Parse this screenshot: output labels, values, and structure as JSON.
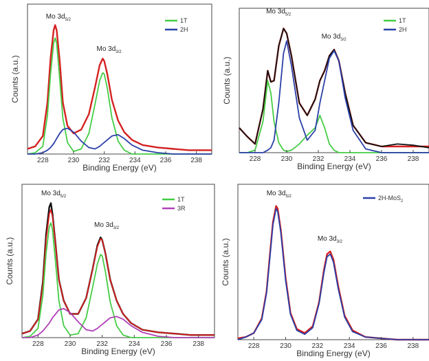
{
  "chart_data": [
    {
      "type": "line",
      "xlabel": "Binding Energy (eV)",
      "ylabel": "Counts (a.u.)",
      "xlim": [
        227,
        239
      ],
      "ylim": [
        0,
        1
      ],
      "xticks": [
        "228",
        "230",
        "232",
        "234",
        "236",
        "238"
      ],
      "x": [
        227.0,
        227.5,
        228.0,
        228.3,
        228.5,
        228.7,
        228.8,
        228.9,
        229.1,
        229.3,
        229.6,
        230.0,
        230.5,
        231.0,
        231.4,
        231.7,
        231.9,
        232.0,
        232.2,
        232.5,
        232.9,
        233.3,
        233.8,
        234.5,
        235.5,
        236.5,
        237.5,
        238.5,
        239.0
      ],
      "series": [
        {
          "name": "",
          "color": "#d42020",
          "values": [
            0.04,
            0.06,
            0.14,
            0.4,
            0.74,
            0.96,
            1.0,
            0.96,
            0.72,
            0.4,
            0.22,
            0.16,
            0.19,
            0.31,
            0.52,
            0.69,
            0.74,
            0.72,
            0.62,
            0.42,
            0.26,
            0.17,
            0.11,
            0.07,
            0.05,
            0.04,
            0.03,
            0.03,
            0.03
          ]
        },
        {
          "name": "1T",
          "color": "#44cc44",
          "values": [
            0.0,
            0.01,
            0.06,
            0.3,
            0.62,
            0.86,
            0.9,
            0.86,
            0.58,
            0.28,
            0.09,
            0.02,
            0.04,
            0.16,
            0.39,
            0.57,
            0.63,
            0.62,
            0.51,
            0.28,
            0.1,
            0.03,
            0.0,
            0.0,
            0.0,
            0.0,
            0.0,
            0.0,
            0.0
          ]
        },
        {
          "name": "2H",
          "color": "#2a3fa8",
          "values": [
            0.0,
            0.0,
            0.01,
            0.03,
            0.05,
            0.08,
            0.1,
            0.12,
            0.16,
            0.19,
            0.2,
            0.17,
            0.1,
            0.05,
            0.04,
            0.06,
            0.08,
            0.09,
            0.11,
            0.14,
            0.15,
            0.12,
            0.07,
            0.03,
            0.01,
            0.0,
            0.0,
            0.0,
            0.0
          ]
        }
      ],
      "annotations": [
        {
          "text": "Mo 3d",
          "sub": "5/2",
          "x": 228.2,
          "y": 1.05
        },
        {
          "text": "Mo 3d",
          "sub": "3/2",
          "x": 231.5,
          "y": 0.8
        }
      ],
      "legend": {
        "placement": "top-right",
        "entries": [
          "1T",
          "2H"
        ]
      }
    },
    {
      "type": "line",
      "xlabel": "Binding Energy (eV)",
      "ylabel": "Counts (a.u.)",
      "xlim": [
        227,
        239
      ],
      "ylim": [
        0,
        1
      ],
      "xticks": [
        "228",
        "230",
        "232",
        "234",
        "236",
        "238"
      ],
      "x": [
        227.0,
        227.5,
        228.0,
        228.5,
        228.8,
        229.0,
        229.2,
        229.5,
        229.8,
        230.0,
        230.3,
        230.8,
        231.3,
        231.8,
        232.1,
        232.4,
        232.7,
        233.0,
        233.3,
        233.7,
        234.2,
        235.0,
        236.0,
        237.0,
        238.0,
        239.0
      ],
      "series": [
        {
          "name": "",
          "color": "#d42020",
          "values": [
            0.2,
            0.13,
            0.07,
            0.35,
            0.66,
            0.57,
            0.58,
            0.86,
            1.0,
            0.96,
            0.78,
            0.4,
            0.3,
            0.43,
            0.58,
            0.66,
            0.78,
            0.83,
            0.74,
            0.48,
            0.22,
            0.08,
            0.05,
            0.05,
            0.05,
            0.05
          ]
        },
        {
          "name": "",
          "color": "#111111",
          "values": [
            0.2,
            0.13,
            0.07,
            0.35,
            0.66,
            0.57,
            0.58,
            0.86,
            1.0,
            0.96,
            0.78,
            0.4,
            0.3,
            0.43,
            0.58,
            0.66,
            0.78,
            0.83,
            0.74,
            0.48,
            0.22,
            0.08,
            0.05,
            0.07,
            0.06,
            0.04
          ]
        },
        {
          "name": "1T",
          "color": "#44cc44",
          "values": [
            0.0,
            0.0,
            0.02,
            0.25,
            0.58,
            0.48,
            0.25,
            0.08,
            0.02,
            0.01,
            0.02,
            0.07,
            0.14,
            0.2,
            0.3,
            0.2,
            0.07,
            0.02,
            0.0,
            0.0,
            0.0,
            0.0,
            0.0,
            0.0,
            0.0,
            0.0
          ]
        },
        {
          "name": "2H",
          "color": "#2a3fa8",
          "values": [
            0.0,
            0.0,
            0.0,
            0.0,
            0.02,
            0.04,
            0.1,
            0.4,
            0.8,
            0.9,
            0.7,
            0.28,
            0.1,
            0.18,
            0.4,
            0.58,
            0.76,
            0.82,
            0.74,
            0.44,
            0.18,
            0.03,
            0.0,
            0.0,
            0.0,
            0.0
          ]
        }
      ],
      "annotations": [
        {
          "text": "Mo 3d",
          "sub": "5/2",
          "x": 228.7,
          "y": 1.12
        },
        {
          "text": "Mo 3d",
          "sub": "3/2",
          "x": 232.2,
          "y": 0.92
        }
      ],
      "legend": {
        "placement": "top-right",
        "entries": [
          "1T",
          "2H"
        ]
      }
    },
    {
      "type": "line",
      "xlabel": "Binding Energy (eV)",
      "ylabel": "Counts (a.u.)",
      "xlim": [
        227,
        239
      ],
      "ylim": [
        0,
        1
      ],
      "xticks": [
        "228",
        "230",
        "232",
        "234",
        "236",
        "238"
      ],
      "x": [
        227.0,
        227.5,
        228.0,
        228.3,
        228.5,
        228.7,
        228.8,
        228.9,
        229.1,
        229.3,
        229.6,
        230.0,
        230.5,
        231.0,
        231.4,
        231.7,
        231.9,
        232.0,
        232.2,
        232.5,
        232.9,
        233.3,
        233.8,
        234.5,
        235.5,
        236.5,
        237.5,
        238.5,
        239.0
      ],
      "series": [
        {
          "name": "",
          "color": "#111111",
          "values": [
            0.03,
            0.05,
            0.14,
            0.42,
            0.78,
            0.99,
            1.02,
            0.94,
            0.7,
            0.44,
            0.28,
            0.18,
            0.18,
            0.3,
            0.52,
            0.7,
            0.76,
            0.74,
            0.64,
            0.44,
            0.28,
            0.18,
            0.11,
            0.06,
            0.04,
            0.03,
            0.02,
            0.02,
            0.02
          ]
        },
        {
          "name": "",
          "color": "#d42020",
          "values": [
            0.03,
            0.05,
            0.14,
            0.4,
            0.74,
            0.94,
            0.97,
            0.92,
            0.7,
            0.44,
            0.28,
            0.18,
            0.18,
            0.3,
            0.52,
            0.69,
            0.75,
            0.74,
            0.64,
            0.44,
            0.28,
            0.18,
            0.11,
            0.06,
            0.04,
            0.03,
            0.02,
            0.02,
            0.02
          ]
        },
        {
          "name": "1T",
          "color": "#44cc44",
          "values": [
            0.0,
            0.01,
            0.07,
            0.32,
            0.64,
            0.84,
            0.87,
            0.82,
            0.56,
            0.28,
            0.09,
            0.02,
            0.03,
            0.15,
            0.38,
            0.56,
            0.63,
            0.62,
            0.5,
            0.27,
            0.09,
            0.02,
            0.0,
            0.0,
            0.0,
            0.0,
            0.0,
            0.0,
            0.0
          ]
        },
        {
          "name": "3R",
          "color": "#b040b8",
          "values": [
            0.0,
            0.0,
            0.02,
            0.05,
            0.08,
            0.11,
            0.13,
            0.15,
            0.18,
            0.21,
            0.22,
            0.19,
            0.12,
            0.06,
            0.05,
            0.07,
            0.09,
            0.1,
            0.12,
            0.15,
            0.16,
            0.14,
            0.09,
            0.04,
            0.01,
            0.0,
            0.0,
            0.0,
            0.0
          ]
        }
      ],
      "annotations": [
        {
          "text": "Mo 3d",
          "sub": "5/2",
          "x": 228.2,
          "y": 1.08
        },
        {
          "text": "Mo 3d",
          "sub": "3/2",
          "x": 231.5,
          "y": 0.84
        }
      ],
      "legend": {
        "placement": "top-right",
        "entries": [
          "1T",
          "3R"
        ]
      }
    },
    {
      "type": "line",
      "xlabel": "Binding Energy (eV)",
      "ylabel": "Counts (a.u.)",
      "xlim": [
        227,
        239
      ],
      "ylim": [
        0,
        1
      ],
      "xticks": [
        "228",
        "230",
        "232",
        "234",
        "236",
        "238"
      ],
      "x": [
        227.0,
        227.5,
        228.0,
        228.5,
        228.8,
        229.0,
        229.2,
        229.4,
        229.5,
        229.7,
        230.0,
        230.3,
        230.7,
        231.2,
        231.7,
        232.1,
        232.4,
        232.6,
        232.8,
        233.0,
        233.3,
        233.7,
        234.2,
        235.0,
        236.0,
        237.0,
        238.0,
        239.0
      ],
      "series": [
        {
          "name": "",
          "color": "#d42020",
          "values": [
            0.01,
            0.02,
            0.05,
            0.16,
            0.36,
            0.62,
            0.88,
            1.0,
            0.98,
            0.82,
            0.46,
            0.2,
            0.08,
            0.05,
            0.1,
            0.28,
            0.52,
            0.64,
            0.66,
            0.6,
            0.4,
            0.18,
            0.07,
            0.02,
            0.01,
            0.0,
            0.0,
            0.0
          ]
        },
        {
          "name": "2H-MoS",
          "color": "#2a3fa8",
          "values": [
            0.0,
            0.02,
            0.05,
            0.15,
            0.35,
            0.6,
            0.86,
            0.98,
            0.96,
            0.8,
            0.44,
            0.19,
            0.07,
            0.04,
            0.09,
            0.27,
            0.5,
            0.62,
            0.64,
            0.58,
            0.38,
            0.17,
            0.06,
            0.02,
            0.01,
            0.0,
            0.0,
            0.0
          ]
        }
      ],
      "annotations": [
        {
          "text": "Mo 3d",
          "sub": "5/2",
          "x": 228.8,
          "y": 1.08
        },
        {
          "text": "Mo 3d",
          "sub": "3/2",
          "x": 232.0,
          "y": 0.74
        }
      ],
      "legend": {
        "placement": "top-right",
        "entries": [
          "2H-MoS2"
        ]
      }
    }
  ]
}
